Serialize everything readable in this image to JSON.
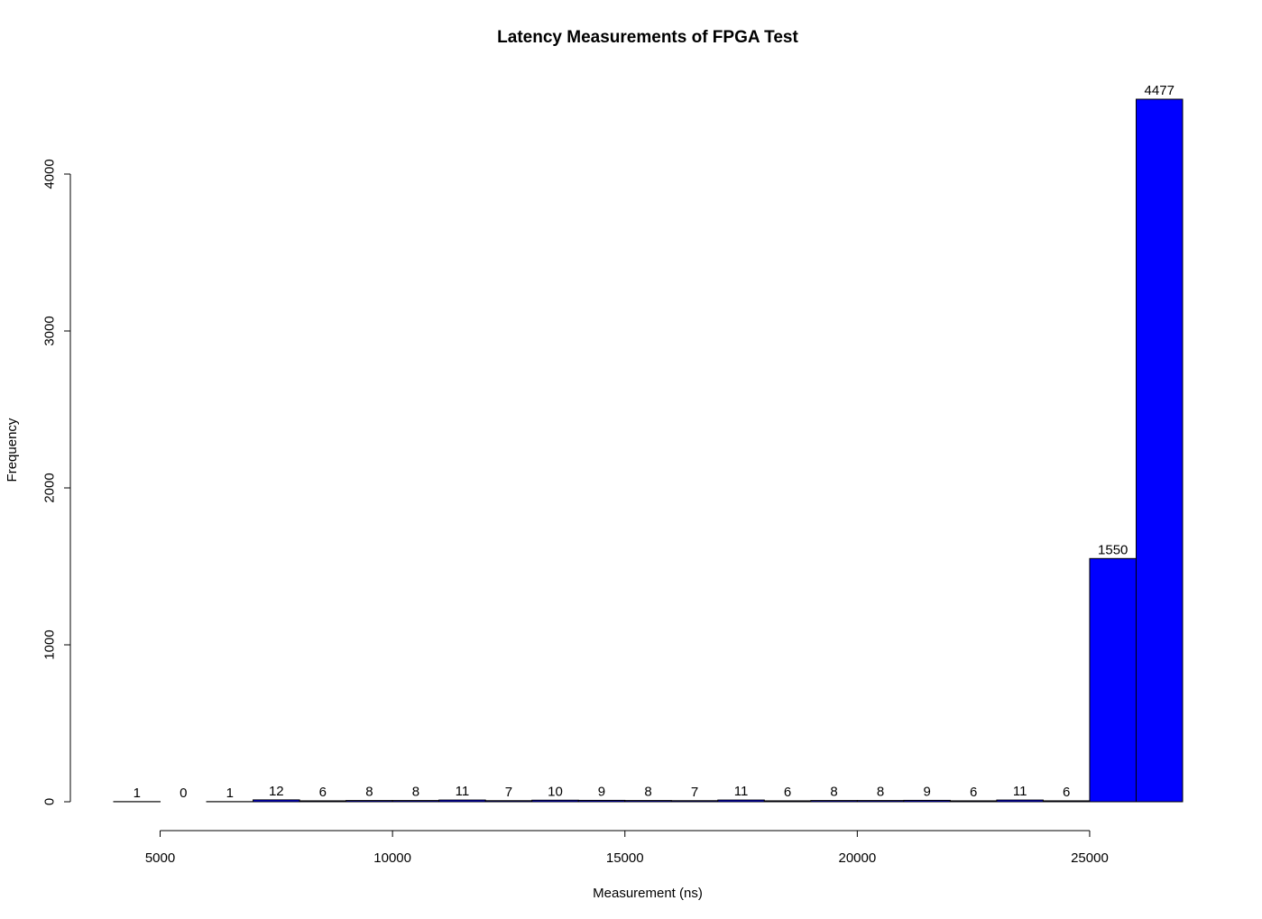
{
  "chart_data": {
    "type": "bar",
    "title": "Latency Measurements of FPGA Test",
    "xlabel": "Measurement (ns)",
    "ylabel": "Frequency",
    "bin_width": 1000,
    "bin_edges": [
      4000,
      5000,
      6000,
      7000,
      8000,
      9000,
      10000,
      11000,
      12000,
      13000,
      14000,
      15000,
      16000,
      17000,
      18000,
      19000,
      20000,
      21000,
      22000,
      23000,
      24000,
      25000,
      26000,
      27000
    ],
    "values": [
      1,
      0,
      1,
      12,
      6,
      8,
      8,
      11,
      7,
      10,
      9,
      8,
      7,
      11,
      6,
      8,
      8,
      9,
      6,
      11,
      6,
      1550,
      4477
    ],
    "data_labels": [
      "1",
      "0",
      "1",
      "12",
      "6",
      "8",
      "8",
      "11",
      "7",
      "10",
      "9",
      "8",
      "7",
      "11",
      "6",
      "8",
      "8",
      "9",
      "6",
      "11",
      "6",
      "1550",
      "4477"
    ],
    "xticks": [
      5000,
      10000,
      15000,
      20000,
      25000
    ],
    "xtick_labels": [
      "5000",
      "10000",
      "15000",
      "20000",
      "25000"
    ],
    "yticks": [
      0,
      1000,
      2000,
      3000,
      4000
    ],
    "ytick_labels": [
      "0",
      "1000",
      "2000",
      "3000",
      "4000"
    ],
    "xlim": [
      4000,
      27000
    ],
    "ylim": [
      0,
      4477
    ],
    "grid": false,
    "bar_color": "#0000ff",
    "edge_color": "#000000"
  }
}
